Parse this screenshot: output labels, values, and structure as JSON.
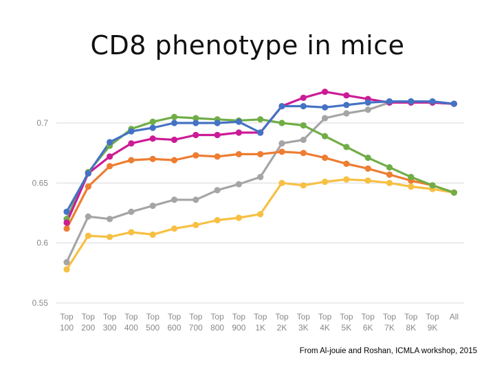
{
  "title": "CD8 phenotype in mice",
  "citation": "From Al-jouie and Roshan, ICMLA workshop, 2015",
  "chart_data": {
    "type": "line",
    "title": "",
    "xlabel": "",
    "ylabel": "",
    "ylim": [
      0.55,
      0.725
    ],
    "yticks": [
      0.55,
      0.6,
      0.65,
      0.7
    ],
    "ytick_labels": [
      "0.55",
      "0.6",
      "0.65",
      "0.7"
    ],
    "grid": true,
    "legend": "none",
    "categories": [
      [
        "Top",
        "100"
      ],
      [
        "Top",
        "200"
      ],
      [
        "Top",
        "300"
      ],
      [
        "Top",
        "400"
      ],
      [
        "Top",
        "500"
      ],
      [
        "Top",
        "600"
      ],
      [
        "Top",
        "700"
      ],
      [
        "Top",
        "800"
      ],
      [
        "Top",
        "900"
      ],
      [
        "Top",
        "1K"
      ],
      [
        "Top",
        "2K"
      ],
      [
        "Top",
        "3K"
      ],
      [
        "Top",
        "4K"
      ],
      [
        "Top",
        "5K"
      ],
      [
        "Top",
        "6K"
      ],
      [
        "Top",
        "7K"
      ],
      [
        "Top",
        "8K"
      ],
      [
        "Top",
        "9K"
      ],
      [
        "All",
        ""
      ]
    ],
    "series": [
      {
        "color": "#f7c043",
        "values": [
          0.578,
          0.606,
          0.605,
          0.609,
          0.607,
          0.612,
          0.615,
          0.619,
          0.621,
          0.624,
          0.65,
          0.648,
          0.651,
          0.653,
          0.652,
          0.65,
          0.647,
          0.645,
          0.642
        ]
      },
      {
        "color": "#a5a5a5",
        "values": [
          0.584,
          0.622,
          0.62,
          0.626,
          0.631,
          0.636,
          0.636,
          0.644,
          0.649,
          0.655,
          0.683,
          0.686,
          0.704,
          0.708,
          0.711,
          0.717,
          0.718,
          0.717,
          0.716
        ]
      },
      {
        "color": "#ed7d31",
        "values": [
          0.612,
          0.647,
          0.664,
          0.669,
          0.67,
          0.669,
          0.673,
          0.672,
          0.674,
          0.674,
          0.676,
          0.675,
          0.671,
          0.666,
          0.662,
          0.657,
          0.652,
          0.648,
          0.642
        ]
      },
      {
        "color": "#70ad47",
        "values": [
          0.62,
          0.659,
          0.681,
          0.695,
          0.701,
          0.705,
          0.704,
          0.703,
          0.702,
          0.703,
          0.7,
          0.698,
          0.689,
          0.68,
          0.671,
          0.663,
          0.655,
          0.648,
          0.642
        ]
      },
      {
        "color": "#cc1b96",
        "values": [
          0.617,
          0.658,
          0.672,
          0.683,
          0.687,
          0.686,
          0.69,
          0.69,
          0.692,
          0.692,
          0.714,
          0.721,
          0.726,
          0.723,
          0.72,
          0.717,
          0.717,
          0.717,
          0.716
        ]
      },
      {
        "color": "#4472c4",
        "values": [
          0.626,
          0.658,
          0.684,
          0.693,
          0.696,
          0.7,
          0.7,
          0.7,
          0.701,
          0.692,
          0.714,
          0.714,
          0.713,
          0.715,
          0.717,
          0.718,
          0.718,
          0.718,
          0.716
        ]
      }
    ]
  }
}
